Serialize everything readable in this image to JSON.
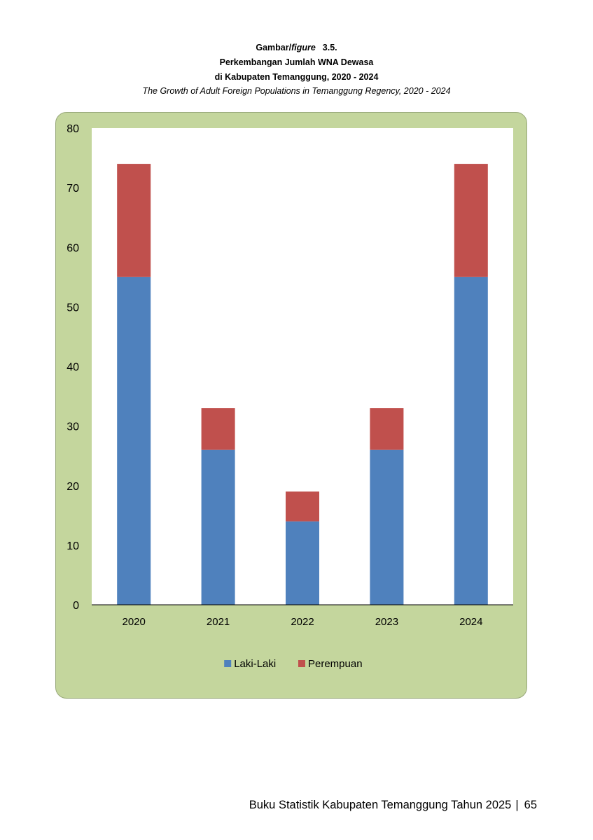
{
  "header": {
    "line1_prefix": "Gambar/",
    "line1_italic": "figure",
    "line1_number": "3.5.",
    "line2": "Perkembangan Jumlah WNA Dewasa",
    "line3": "di Kabupaten Temanggung,  2020 - 2024",
    "line4": "The Growth of Adult Foreign Populations in Temanggung Regency, 2020 - 2024"
  },
  "chart_data": {
    "type": "bar",
    "stacked": true,
    "categories": [
      "2020",
      "2021",
      "2022",
      "2023",
      "2024"
    ],
    "series": [
      {
        "name": "Laki-Laki",
        "color": "#4f81bd",
        "values": [
          55,
          26,
          14,
          26,
          55
        ]
      },
      {
        "name": "Perempuan",
        "color": "#c0504d",
        "values": [
          19,
          7,
          5,
          7,
          19
        ]
      }
    ],
    "ylim": [
      0,
      80
    ],
    "yticks": [
      0,
      10,
      20,
      30,
      40,
      50,
      60,
      70,
      80
    ],
    "grid": false,
    "legend": "bottom",
    "plot_background": "#ffffff",
    "panel_background": "#c4d69d"
  },
  "footer": {
    "text": "Buku Statistik Kabupaten Temanggung Tahun 2025",
    "separator": "|",
    "page": "65"
  }
}
